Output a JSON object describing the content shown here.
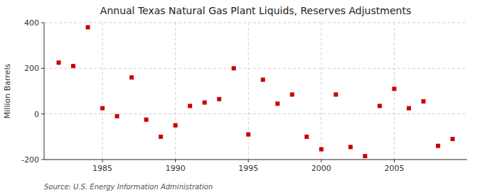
{
  "chart_data": {
    "type": "scatter",
    "title": "Annual Texas Natural Gas Plant Liquids, Reserves Adjustments",
    "y_label": "Million Barrels",
    "annotations": [
      "Source: U.S. Energy Information Administration"
    ],
    "x": [
      1982,
      1983,
      1984,
      1985,
      1986,
      1987,
      1988,
      1989,
      1990,
      1991,
      1992,
      1993,
      1994,
      1995,
      1996,
      1997,
      1998,
      1999,
      2000,
      2001,
      2002,
      2003,
      2004,
      2005,
      2006,
      2007,
      2008,
      2009
    ],
    "values": [
      225,
      210,
      380,
      25,
      -10,
      160,
      -25,
      -100,
      -50,
      35,
      50,
      65,
      200,
      -90,
      150,
      45,
      85,
      -100,
      -155,
      85,
      -145,
      -185,
      35,
      110,
      25,
      55,
      -140,
      -110
    ],
    "color": "#cc0000",
    "marker": "square",
    "xlim": [
      1981,
      2010
    ],
    "ylim": [
      -200,
      400
    ],
    "xticks": [
      1985,
      1990,
      1995,
      2000,
      2005
    ],
    "yticks": [
      -200,
      0,
      200,
      400
    ],
    "grid": true
  }
}
